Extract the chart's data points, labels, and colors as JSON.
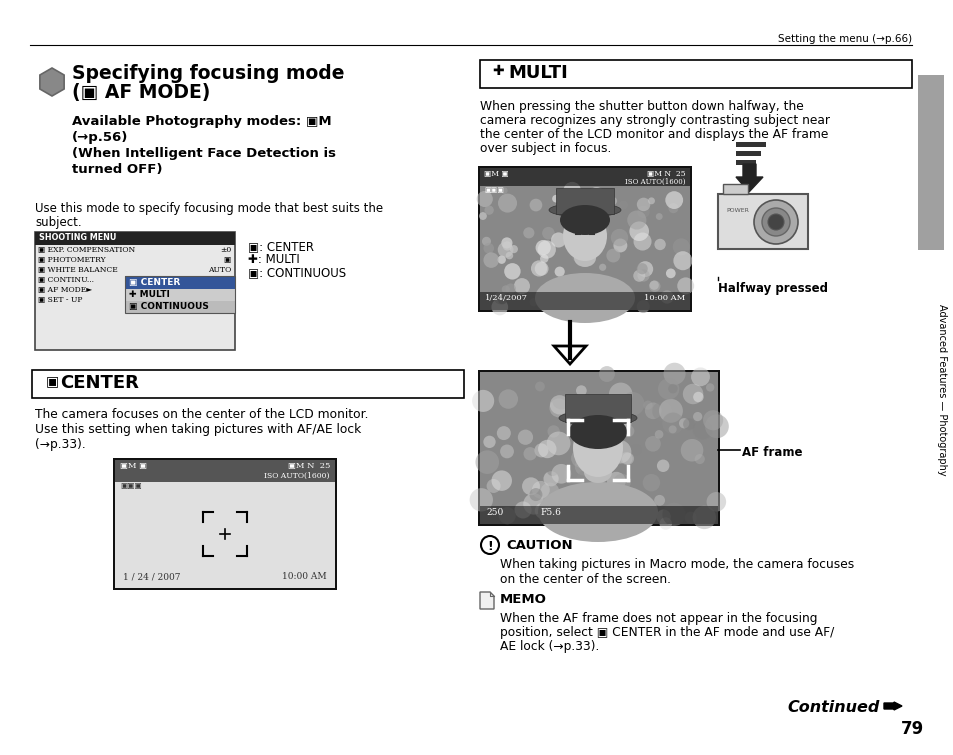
{
  "bg_color": "#ffffff",
  "page_header": "Setting the menu (→p.66)",
  "page_number": "79",
  "adv_features_text": "Advanced Features — Photography",
  "section_title_line1": "Specifying focusing mode",
  "section_title_line2": "(▣ AF MODE)",
  "sub_title_lines": [
    "Available Photography modes: ▣M",
    "(→p.56)",
    "(When Intelligent Face Detection is",
    "turned OFF)"
  ],
  "intro_text": "Use this mode to specify focusing mode that best suits the\nsubject.",
  "legend_lines": [
    "▣: CENTER",
    "✚: MULTI",
    "▣: CONTINUOUS"
  ],
  "center_box_label": "▣  CENTER",
  "center_desc_lines": [
    "The camera focuses on the center of the LCD monitor.",
    "Use this setting when taking pictures with AF/AE lock",
    "(→p.33)."
  ],
  "multi_box_label": "✚  MULTI",
  "multi_desc_lines": [
    "When pressing the shutter button down halfway, the",
    "camera recognizes any strongly contrasting subject near",
    "the center of the LCD monitor and displays the AF frame",
    "over subject in focus."
  ],
  "halfway_label": "Halfway pressed",
  "af_frame_label": "AF frame",
  "caution_title": "CAUTION",
  "caution_text_lines": [
    "When taking pictures in Macro mode, the camera focuses",
    "on the center of the screen."
  ],
  "memo_title": "MEMO",
  "memo_text_lines": [
    "When the AF frame does not appear in the focusing",
    "position, select ▣ CENTER in the AF mode and use AF/",
    "AE lock (→p.33)."
  ],
  "continued_text": "Continued ➡",
  "lcd1_date": "1/24/2007",
  "lcd1_time": "10:00 AM",
  "lcd2_date": "1/24/2007",
  "lcd2_time": "10:00 AM",
  "photo_shutter": "250",
  "photo_fstop": "F5.6"
}
